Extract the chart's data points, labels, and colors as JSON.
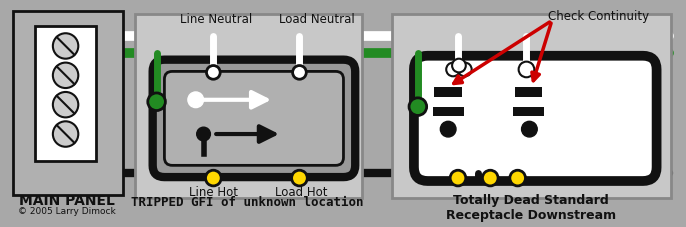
{
  "bg_color": "#a8a8a8",
  "black": "#111111",
  "white": "#ffffff",
  "green": "#228B22",
  "yellow": "#FFD700",
  "red": "#cc0000",
  "dark_gray": "#888888",
  "mid_gray": "#b0b0b0",
  "light_gray": "#c8c8c8",
  "panel_inner": "#ffffff",
  "gfi_body": "#888888",
  "outlet_face": "#ffffff",
  "figsize": [
    6.86,
    2.28
  ],
  "dpi": 100,
  "title_main": "MAIN PANEL",
  "copyright": "© 2005 Larry Dimock",
  "label_line_neutral": "Line Neutral",
  "label_load_neutral": "Load Neutral",
  "label_line_hot": "Line Hot",
  "label_load_hot": "Load Hot",
  "label_check": "Check Continuity",
  "label_tripped": "TRIPPED GFI of unknown location",
  "label_dead": "Totally Dead Standard\nReceptacle Downstream"
}
